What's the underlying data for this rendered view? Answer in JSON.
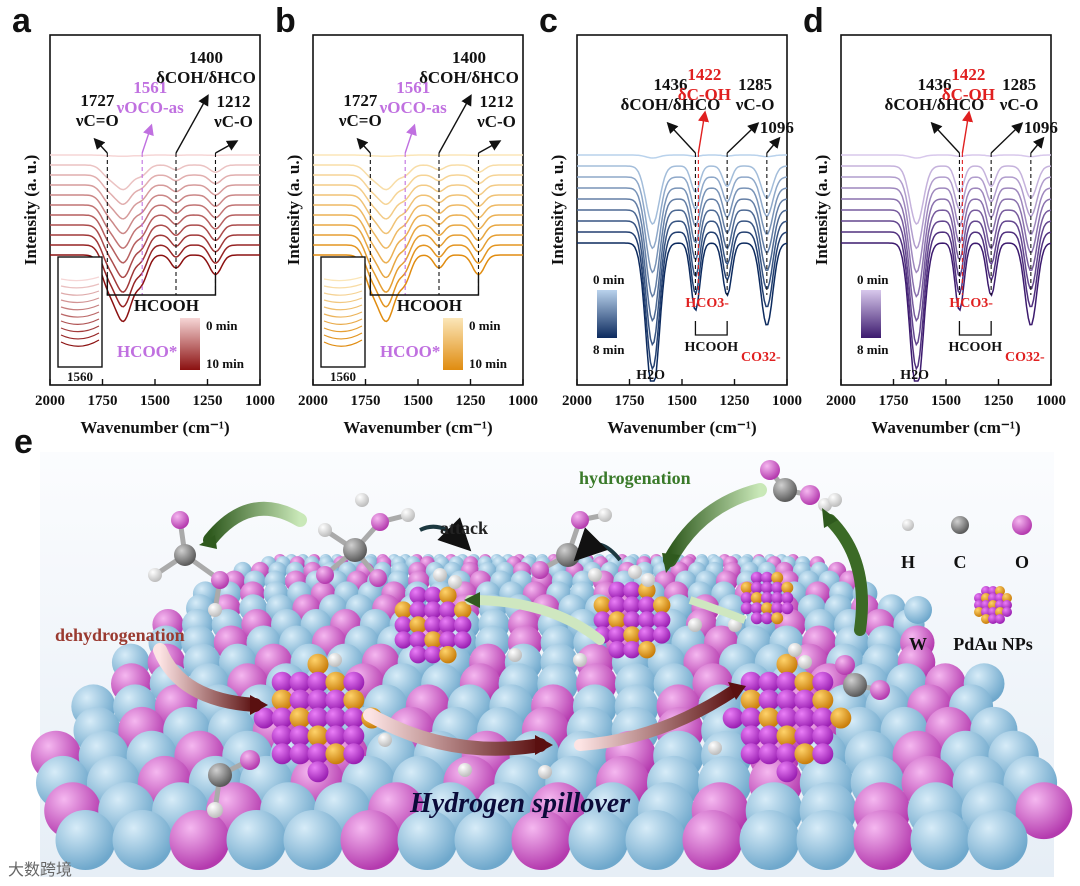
{
  "watermark": "大数跨境",
  "chart_data": [
    {
      "panel": "a",
      "type": "line",
      "xlabel": "Wavenumber (cm⁻¹)",
      "ylabel": "Intensity (a. u.)",
      "xlim": [
        2000,
        1000
      ],
      "xticks": [
        "2000",
        "1750",
        "1500",
        "1250",
        "1000"
      ],
      "series_count": 11,
      "colors": {
        "start": "#f6d6d6",
        "end": "#8b1010"
      },
      "dips": [
        {
          "x": 1727,
          "depth": 0.35,
          "w": 45
        },
        {
          "x": 1650,
          "depth": 1.0,
          "w": 60
        },
        {
          "x": 1561,
          "depth": 0.35,
          "w": 40
        },
        {
          "x": 1400,
          "depth": 0.2,
          "w": 35
        },
        {
          "x": 1212,
          "depth": 0.3,
          "w": 40
        }
      ],
      "annotations": [
        {
          "wn": 1727,
          "label": "1727",
          "sub": "νC=O",
          "color": "#111"
        },
        {
          "wn": 1561,
          "label": "1561",
          "sub": "νOCO-as",
          "color": "#c070e0"
        },
        {
          "wn": 1400,
          "label": "1400",
          "sub": "δCOH/δHCO",
          "color": "#111"
        },
        {
          "wn": 1212,
          "label": "1212",
          "sub": "νC-O",
          "color": "#111"
        }
      ],
      "bracket_label": "HCOOH",
      "species_label": "HCOO*",
      "legend": {
        "top": "0 min",
        "bottom": "10 min"
      },
      "inset_label": "1560"
    },
    {
      "panel": "b",
      "type": "line",
      "xlabel": "Wavenumber (cm⁻¹)",
      "ylabel": "Intensity (a. u.)",
      "xlim": [
        2000,
        1000
      ],
      "xticks": [
        "2000",
        "1750",
        "1500",
        "1250",
        "1000"
      ],
      "series_count": 11,
      "colors": {
        "start": "#fbe6b8",
        "end": "#e08c10"
      },
      "dips": [
        {
          "x": 1727,
          "depth": 0.35,
          "w": 45
        },
        {
          "x": 1650,
          "depth": 1.0,
          "w": 60
        },
        {
          "x": 1561,
          "depth": 0.35,
          "w": 40
        },
        {
          "x": 1400,
          "depth": 0.2,
          "w": 35
        },
        {
          "x": 1212,
          "depth": 0.3,
          "w": 40
        }
      ],
      "annotations": [
        {
          "wn": 1727,
          "label": "1727",
          "sub": "νC=O",
          "color": "#111"
        },
        {
          "wn": 1561,
          "label": "1561",
          "sub": "νOCO-as",
          "color": "#c070e0"
        },
        {
          "wn": 1400,
          "label": "1400",
          "sub": "δCOH/δHCO",
          "color": "#111"
        },
        {
          "wn": 1212,
          "label": "1212",
          "sub": "νC-O",
          "color": "#111"
        }
      ],
      "bracket_label": "HCOOH",
      "species_label": "HCOO*",
      "legend": {
        "top": "0 min",
        "bottom": "10 min"
      },
      "inset_label": "1560"
    },
    {
      "panel": "c",
      "type": "line",
      "xlabel": "Wavenumber (cm⁻¹)",
      "ylabel": "Intensity (a. u.)",
      "xlim": [
        2000,
        1000
      ],
      "xticks": [
        "2000",
        "1750",
        "1500",
        "1250",
        "1000"
      ],
      "series_count": 9,
      "colors": {
        "start": "#b9d2ec",
        "end": "#0c2a5e"
      },
      "dips": [
        {
          "x": 1640,
          "depth": 1.0,
          "w": 45
        },
        {
          "x": 1436,
          "depth": 0.45,
          "w": 30
        },
        {
          "x": 1285,
          "depth": 0.35,
          "w": 30
        },
        {
          "x": 1096,
          "depth": 0.55,
          "w": 40
        }
      ],
      "annotations": [
        {
          "wn": 1436,
          "label": "1436",
          "sub": "δCOH/δHCO",
          "color": "#111"
        },
        {
          "wn": 1422,
          "label": "1422",
          "sub": "δC-OH",
          "color": "#e02020"
        },
        {
          "wn": 1285,
          "label": "1285",
          "sub": "νC-O",
          "color": "#111"
        },
        {
          "wn": 1096,
          "label": "1096",
          "sub": "",
          "color": "#111"
        }
      ],
      "species": [
        "H2O",
        "HCOOH",
        "HCO3-",
        "CO32-"
      ],
      "legend": {
        "top": "0 min",
        "bottom": "8 min"
      }
    },
    {
      "panel": "d",
      "type": "line",
      "xlabel": "Wavenumber (cm⁻¹)",
      "ylabel": "Intensity (a. u.)",
      "xlim": [
        2000,
        1000
      ],
      "xticks": [
        "2000",
        "1750",
        "1500",
        "1250",
        "1000"
      ],
      "series_count": 9,
      "colors": {
        "start": "#d8c8ec",
        "end": "#3c1a6e"
      },
      "dips": [
        {
          "x": 1640,
          "depth": 1.0,
          "w": 45
        },
        {
          "x": 1436,
          "depth": 0.45,
          "w": 30
        },
        {
          "x": 1285,
          "depth": 0.35,
          "w": 30
        },
        {
          "x": 1096,
          "depth": 0.55,
          "w": 40
        }
      ],
      "annotations": [
        {
          "wn": 1436,
          "label": "1436",
          "sub": "δCOH/δHCO",
          "color": "#111"
        },
        {
          "wn": 1422,
          "label": "1422",
          "sub": "δC-OH",
          "color": "#e02020"
        },
        {
          "wn": 1285,
          "label": "1285",
          "sub": "νC-O",
          "color": "#111"
        },
        {
          "wn": 1096,
          "label": "1096",
          "sub": "",
          "color": "#111"
        }
      ],
      "species": [
        "H2O",
        "HCOOH",
        "HCO3-",
        "CO32-"
      ],
      "legend": {
        "top": "0 min",
        "bottom": "8 min"
      }
    }
  ],
  "panel_e": {
    "letter": "e",
    "labels": {
      "hydrogenation": "hydrogenation",
      "attack": "attack",
      "dehydrogenation": "dehydrogenation",
      "spillover": "Hydrogen spillover"
    },
    "legend": [
      {
        "symbol": "H",
        "label": "H"
      },
      {
        "symbol": "C",
        "label": "C"
      },
      {
        "symbol": "O",
        "label": "O"
      },
      {
        "symbol": "W",
        "label": "W"
      },
      {
        "symbol": "NP",
        "label": "PdAu NPs"
      }
    ],
    "colors": {
      "H": "#f2f2f2",
      "C": "#8a8a8a",
      "O": "#d84fd2",
      "W": "#8fc0dd",
      "Pd": "#c23fd8",
      "Au": "#f0a020"
    }
  }
}
